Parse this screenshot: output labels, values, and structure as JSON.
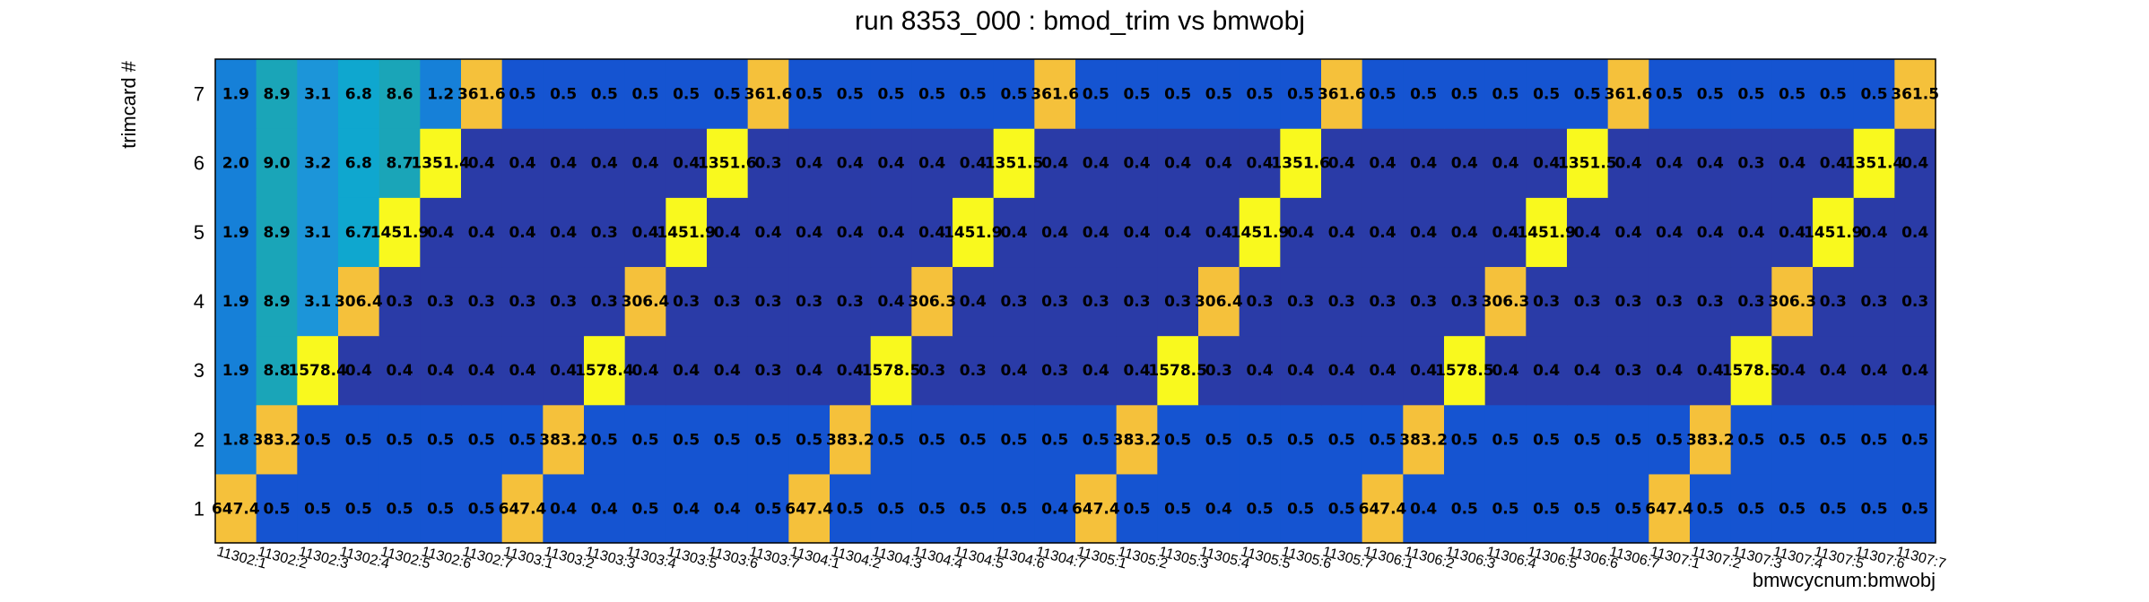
{
  "chart_data": {
    "type": "heatmap",
    "title": "run 8353_000 : bmod_trim vs bmwobj",
    "xlabel": "bmwcycnum:bmwobj",
    "ylabel": "trimcard #",
    "x_categories": [
      "11302:1",
      "11302:2",
      "11302:3",
      "11302:4",
      "11302:5",
      "11302:6",
      "11302:7",
      "11303:1",
      "11303:2",
      "11303:3",
      "11303:4",
      "11303:5",
      "11303:6",
      "11303:7",
      "11304:1",
      "11304:2",
      "11304:3",
      "11304:4",
      "11304:5",
      "11304:6",
      "11304:7",
      "11305:1",
      "11305:2",
      "11305:3",
      "11305:4",
      "11305:5",
      "11305:6",
      "11305:7",
      "11306:1",
      "11306:2",
      "11306:3",
      "11306:4",
      "11306:5",
      "11306:6",
      "11306:7",
      "11307:1",
      "11307:2",
      "11307:3",
      "11307:4",
      "11307:5",
      "11307:6",
      "11307:7"
    ],
    "y_categories": [
      "1",
      "2",
      "3",
      "4",
      "5",
      "6",
      "7"
    ],
    "values": [
      [
        "647.4",
        "0.5",
        "0.5",
        "0.5",
        "0.5",
        "0.5",
        "0.5",
        "647.4",
        "0.4",
        "0.4",
        "0.5",
        "0.4",
        "0.4",
        "0.5",
        "647.4",
        "0.5",
        "0.5",
        "0.5",
        "0.5",
        "0.5",
        "0.4",
        "647.4",
        "0.5",
        "0.5",
        "0.4",
        "0.5",
        "0.5",
        "0.5",
        "647.4",
        "0.4",
        "0.5",
        "0.5",
        "0.5",
        "0.5",
        "0.5",
        "647.4",
        "0.5",
        "0.5",
        "0.5",
        "0.5",
        "0.5",
        "0.5"
      ],
      [
        "1.8",
        "383.2",
        "0.5",
        "0.5",
        "0.5",
        "0.5",
        "0.5",
        "0.5",
        "383.2",
        "0.5",
        "0.5",
        "0.5",
        "0.5",
        "0.5",
        "0.5",
        "383.2",
        "0.5",
        "0.5",
        "0.5",
        "0.5",
        "0.5",
        "0.5",
        "383.2",
        "0.5",
        "0.5",
        "0.5",
        "0.5",
        "0.5",
        "0.5",
        "383.2",
        "0.5",
        "0.5",
        "0.5",
        "0.5",
        "0.5",
        "0.5",
        "383.2",
        "0.5",
        "0.5",
        "0.5",
        "0.5",
        "0.5"
      ],
      [
        "1.9",
        "8.8",
        "1578.4",
        "0.4",
        "0.4",
        "0.4",
        "0.4",
        "0.4",
        "0.4",
        "1578.4",
        "0.4",
        "0.4",
        "0.4",
        "0.3",
        "0.4",
        "0.4",
        "1578.5",
        "0.3",
        "0.3",
        "0.4",
        "0.3",
        "0.4",
        "0.4",
        "1578.5",
        "0.3",
        "0.4",
        "0.4",
        "0.4",
        "0.4",
        "0.4",
        "1578.5",
        "0.4",
        "0.4",
        "0.4",
        "0.3",
        "0.4",
        "0.4",
        "1578.5",
        "0.4",
        "0.4",
        "0.4",
        "0.4"
      ],
      [
        "1.9",
        "8.9",
        "3.1",
        "306.4",
        "0.3",
        "0.3",
        "0.3",
        "0.3",
        "0.3",
        "0.3",
        "306.4",
        "0.3",
        "0.3",
        "0.3",
        "0.3",
        "0.3",
        "0.4",
        "306.3",
        "0.4",
        "0.3",
        "0.3",
        "0.3",
        "0.3",
        "0.3",
        "306.4",
        "0.3",
        "0.3",
        "0.3",
        "0.3",
        "0.3",
        "0.3",
        "306.3",
        "0.3",
        "0.3",
        "0.3",
        "0.3",
        "0.3",
        "0.3",
        "306.3",
        "0.3",
        "0.3",
        "0.3"
      ],
      [
        "1.9",
        "8.9",
        "3.1",
        "6.7",
        "1451.9",
        "0.4",
        "0.4",
        "0.4",
        "0.4",
        "0.3",
        "0.4",
        "1451.9",
        "0.4",
        "0.4",
        "0.4",
        "0.4",
        "0.4",
        "0.4",
        "1451.9",
        "0.4",
        "0.4",
        "0.4",
        "0.4",
        "0.4",
        "0.4",
        "1451.9",
        "0.4",
        "0.4",
        "0.4",
        "0.4",
        "0.4",
        "0.4",
        "1451.9",
        "0.4",
        "0.4",
        "0.4",
        "0.4",
        "0.4",
        "0.4",
        "1451.9",
        "0.4",
        "0.4"
      ],
      [
        "2.0",
        "9.0",
        "3.2",
        "6.8",
        "8.7",
        "1351.4",
        "0.4",
        "0.4",
        "0.4",
        "0.4",
        "0.4",
        "0.4",
        "1351.6",
        "0.3",
        "0.4",
        "0.4",
        "0.4",
        "0.4",
        "0.4",
        "1351.5",
        "0.4",
        "0.4",
        "0.4",
        "0.4",
        "0.4",
        "0.4",
        "1351.6",
        "0.4",
        "0.4",
        "0.4",
        "0.4",
        "0.4",
        "0.4",
        "1351.5",
        "0.4",
        "0.4",
        "0.4",
        "0.3",
        "0.4",
        "0.4",
        "1351.4",
        "0.4"
      ],
      [
        "1.9",
        "8.9",
        "3.1",
        "6.8",
        "8.6",
        "1.2",
        "361.6",
        "0.5",
        "0.5",
        "0.5",
        "0.5",
        "0.5",
        "0.5",
        "361.6",
        "0.5",
        "0.5",
        "0.5",
        "0.5",
        "0.5",
        "0.5",
        "361.6",
        "0.5",
        "0.5",
        "0.5",
        "0.5",
        "0.5",
        "0.5",
        "361.6",
        "0.5",
        "0.5",
        "0.5",
        "0.5",
        "0.5",
        "0.5",
        "361.6",
        "0.5",
        "0.5",
        "0.5",
        "0.5",
        "0.5",
        "0.5",
        "361.5"
      ]
    ],
    "colors": {
      "peak_high": "#f9f91e",
      "peak_low": "#f5c13b",
      "background_dark": "#2a3ba7",
      "background_mid": "#1554d1",
      "low_1": "#1680d8",
      "low_2": "#1aa5b8",
      "low_3": "#0fa7cf",
      "low_4": "#1c95d9"
    },
    "grid": false,
    "legend": "none"
  }
}
